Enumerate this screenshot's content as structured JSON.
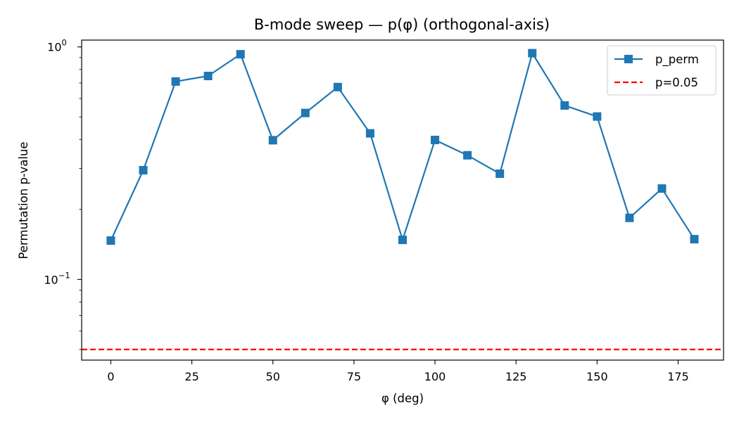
{
  "chart_data": {
    "type": "line",
    "title": "B-mode sweep — p(φ) (orthogonal-axis)",
    "xlabel": "φ (deg)",
    "ylabel": "Permutation p-value",
    "xlim": [
      -9,
      189
    ],
    "ylim": [
      0.045,
      1.07
    ],
    "yscale": "log",
    "x_ticks": [
      0,
      25,
      50,
      75,
      100,
      125,
      150,
      175
    ],
    "y_ticks": [
      {
        "value": 0.1,
        "base": "10",
        "exp": "−1"
      },
      {
        "value": 1.0,
        "base": "10",
        "exp": "0"
      }
    ],
    "series": [
      {
        "name": "p_perm",
        "color": "#1f77b4",
        "marker": "square",
        "x": [
          0,
          10,
          20,
          30,
          40,
          50,
          60,
          70,
          80,
          90,
          100,
          110,
          120,
          130,
          140,
          150,
          160,
          170,
          180
        ],
        "y": [
          0.147,
          0.295,
          0.71,
          0.75,
          0.93,
          0.397,
          0.52,
          0.672,
          0.425,
          0.148,
          0.398,
          0.342,
          0.285,
          0.94,
          0.56,
          0.502,
          0.184,
          0.246,
          0.149
        ]
      }
    ],
    "reference_lines": [
      {
        "name": "p=0.05",
        "y": 0.05,
        "color": "#ff0000",
        "style": "dashed"
      }
    ],
    "legend_position": "top-right",
    "grid": false
  }
}
